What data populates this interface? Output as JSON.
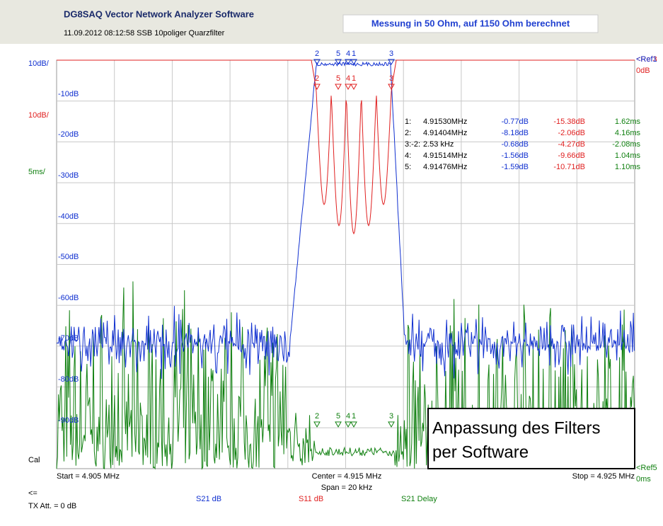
{
  "header": {
    "title": "DG8SAQ Vector Network Analyzer Software",
    "subtitle": "11.09.2012   08:12:58    SSB 10poliger Quarzfilter",
    "note": "Messung in 50 Ohm, auf 1150 Ohm berechnet"
  },
  "left_labels": [
    {
      "text": "10dB/",
      "trace": "s21"
    },
    {
      "text": "-10dB",
      "trace": "s21"
    },
    {
      "text": "10dB/",
      "trace": "s11"
    },
    {
      "text": "-20dB",
      "trace": "s21"
    },
    {
      "text": "5ms/",
      "trace": "delay"
    },
    {
      "text": "-30dB",
      "trace": "s21"
    },
    {
      "text": "-40dB",
      "trace": "s21"
    },
    {
      "text": "-50dB",
      "trace": "s21"
    },
    {
      "text": "-60dB",
      "trace": "s21"
    },
    {
      "text": "-70dB",
      "trace": "s21"
    },
    {
      "text": "-80dB",
      "trace": "s21"
    },
    {
      "text": "-90dB",
      "trace": "s21"
    },
    {
      "text": "Cal",
      "trace": "none"
    }
  ],
  "right_labels": [
    "<Ref3",
    "<Ref1",
    "0dB",
    "<Ref5",
    "0ms"
  ],
  "markers": [
    [
      "1:",
      "4.91530MHz",
      "-0.77dB",
      "-15.38dB",
      "1.62ms"
    ],
    [
      "2:",
      "4.91404MHz",
      "-8.18dB",
      "-2.06dB",
      "4.16ms"
    ],
    [
      "3:-2:",
      "2.53 kHz",
      "-0.68dB",
      "-4.27dB",
      "-2.08ms"
    ],
    [
      "4:",
      "4.91514MHz",
      "-1.56dB",
      "-9.66dB",
      "1.04ms"
    ],
    [
      "5:",
      "4.91476MHz",
      "-1.59dB",
      "-10.71dB",
      "1.10ms"
    ]
  ],
  "flags": [
    "2",
    "5",
    "4",
    "1",
    "3",
    "2",
    "5",
    "4",
    "1",
    "3",
    "2",
    "5",
    "4",
    "1",
    "3"
  ],
  "footer": {
    "start": "Start = 4.905 MHz",
    "center": "Center = 4.915 MHz",
    "span": "Span = 20 kHz",
    "stop": "Stop = 4.925 MHz",
    "back": "<=",
    "tx": "TX Att.  = 0 dB",
    "legend": [
      "S21  dB",
      "S11  dB",
      "S21  Delay"
    ]
  },
  "overlay": [
    "Anpassung des Filters",
    "per Software"
  ]
}
